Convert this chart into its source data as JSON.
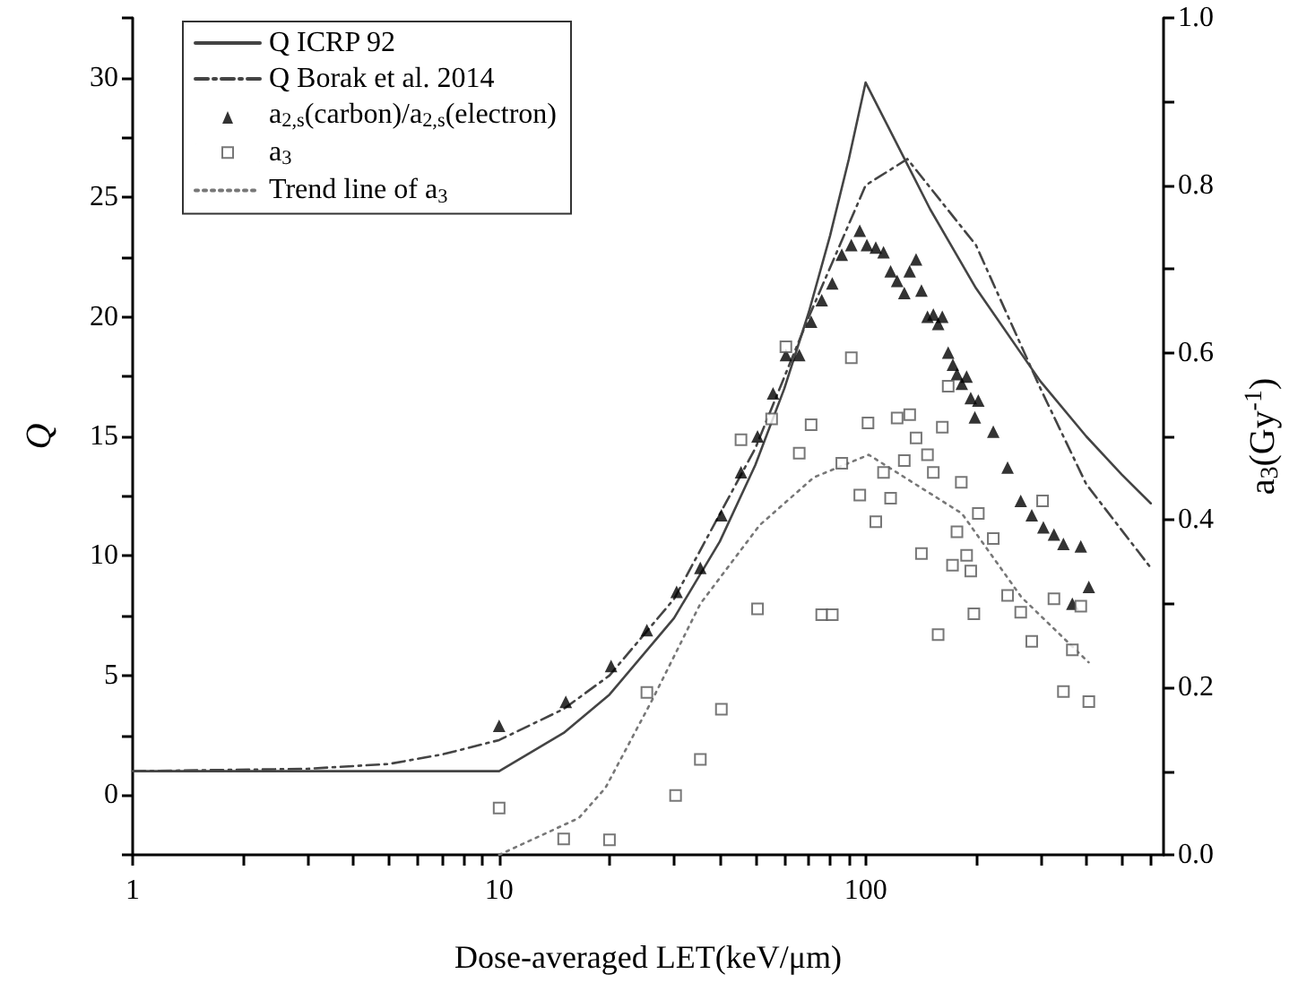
{
  "chart_data": {
    "type": "line",
    "xlabel": "Dose-averaged LET(keV/μm)",
    "ylabel": "Q",
    "y2label": "a$_{3}$(Gy$^{-1}$)",
    "log": "x",
    "grid": false,
    "legend": "top left",
    "xlim": [
      1,
      650
    ],
    "xticks": [
      1,
      {
        "value": 2,
        "label": null
      },
      {
        "value": 3,
        "label": null
      },
      {
        "value": 4,
        "label": null
      },
      {
        "value": 5,
        "label": null
      },
      {
        "value": 6,
        "label": null
      },
      {
        "value": 7,
        "label": null
      },
      {
        "value": 8,
        "label": null
      },
      {
        "value": 9,
        "label": null
      },
      10,
      {
        "value": 20,
        "label": null
      },
      {
        "value": 30,
        "label": null
      },
      {
        "value": 40,
        "label": null
      },
      {
        "value": 50,
        "label": null
      },
      {
        "value": 60,
        "label": null
      },
      {
        "value": 70,
        "label": null
      },
      {
        "value": 80,
        "label": null
      },
      {
        "value": 90,
        "label": null
      },
      100,
      {
        "value": 200,
        "label": null
      },
      {
        "value": 300,
        "label": null
      },
      {
        "value": 400,
        "label": null
      },
      {
        "value": 500,
        "label": null
      },
      {
        "value": 600,
        "label": null
      }
    ],
    "ylim": [
      -2.5,
      32.5
    ],
    "yticks": [
      {
        "value": -2.5,
        "label": null
      },
      0,
      {
        "value": 2.5,
        "label": null
      },
      5,
      {
        "value": 7.5,
        "label": null
      },
      10,
      {
        "value": 12.5,
        "label": null
      },
      15,
      {
        "value": 17.5,
        "label": null
      },
      20,
      {
        "value": 22.5,
        "label": null
      },
      25,
      {
        "value": 27.5,
        "label": null
      },
      30,
      {
        "value": 32.5,
        "label": null
      }
    ],
    "y2lim": [
      0,
      1
    ],
    "y2ticks": [
      {
        "value": 0,
        "label": "0.0"
      },
      {
        "value": 0.1,
        "label": null
      },
      {
        "value": 0.2,
        "label": "0.2"
      },
      {
        "value": 0.3,
        "label": null
      },
      {
        "value": 0.4,
        "label": "0.4"
      },
      {
        "value": 0.5,
        "label": null
      },
      {
        "value": 0.6,
        "label": "0.6"
      },
      {
        "value": 0.7,
        "label": null
      },
      {
        "value": 0.8,
        "label": "0.8"
      },
      {
        "value": 0.9,
        "label": null
      },
      {
        "value": 1,
        "label": "1.0"
      }
    ],
    "series": [
      {
        "name": "Q ICRP 92",
        "type": "line",
        "color": "#444444",
        "line_style": "solid",
        "marker": "none",
        "x": [
          1,
          10,
          15,
          20,
          30,
          40,
          50,
          60,
          70,
          80,
          90,
          100,
          150,
          200,
          300,
          400,
          500,
          600
        ],
        "values": [
          1,
          1,
          2.6,
          4.2,
          7.4,
          10.6,
          13.8,
          17.0,
          20.2,
          23.4,
          26.6,
          29.8,
          24.5,
          21.2,
          17.3,
          15.0,
          13.4,
          12.2
        ]
      },
      {
        "name": "Q Borak et al. 2014",
        "type": "line",
        "color": "#444444",
        "line_style": "dashed",
        "marker": "none",
        "x": [
          1,
          3,
          5,
          7,
          10,
          15,
          20,
          30,
          50,
          70,
          100,
          130,
          200,
          300,
          400,
          600
        ],
        "values": [
          1.0,
          1.1,
          1.3,
          1.7,
          2.3,
          3.6,
          5.0,
          8.2,
          14.5,
          20.0,
          25.5,
          26.6,
          23.0,
          17.0,
          13.0,
          9.5
        ]
      },
      {
        "name": "a$_{2,s}$(carbon)/a$_{2,s}$(electron)",
        "type": "scatter",
        "color": "#000000",
        "marker": "triangle",
        "x": [
          10,
          15.2,
          20.2,
          25.3,
          30.5,
          35.4,
          40.4,
          45.7,
          50.7,
          55.9,
          60.6,
          65.9,
          71,
          75.9,
          81.1,
          86.1,
          91.4,
          96.4,
          100.8,
          106.6,
          111.9,
          117,
          121.9,
          127.5,
          131.9,
          137.3,
          142,
          147.5,
          153,
          157.7,
          161.9,
          168,
          173,
          177.5,
          183,
          188.6,
          193.6,
          198.6,
          203,
          223,
          244,
          265,
          284,
          305.5,
          326.5,
          346.5,
          366.5,
          386.5,
          406.5
        ],
        "values": [
          2.9,
          3.9,
          5.4,
          6.9,
          8.5,
          9.5,
          11.7,
          13.5,
          15.0,
          16.8,
          18.4,
          18.4,
          19.8,
          20.7,
          21.4,
          22.6,
          23.0,
          23.6,
          23.0,
          22.9,
          22.7,
          21.9,
          21.5,
          21.0,
          21.9,
          22.4,
          21.1,
          20.0,
          20.1,
          19.7,
          20.0,
          18.5,
          18.0,
          17.6,
          17.2,
          17.5,
          16.6,
          15.8,
          16.5,
          15.2,
          13.7,
          12.3,
          11.7,
          11.2,
          10.9,
          10.5,
          8.0,
          10.4,
          8.7
        ]
      },
      {
        "name": "a$_{3}$",
        "type": "scatter",
        "axis": "y2",
        "color": "#555555",
        "marker": "square",
        "x": [
          10,
          15,
          20,
          25.3,
          30.3,
          35.4,
          40.4,
          45.7,
          50.7,
          55.4,
          60.6,
          65.9,
          71,
          75.9,
          81.1,
          86.1,
          91.4,
          96.4,
          101.5,
          106.6,
          111.9,
          117,
          121.9,
          127.5,
          131.9,
          137.3,
          142,
          147.5,
          153,
          157.7,
          161.9,
          168,
          172.6,
          177.5,
          182.4,
          188.6,
          193.6,
          197.4,
          203,
          223,
          244,
          265,
          284,
          304,
          326.5,
          346.5,
          366.5,
          386.5,
          406.5
        ],
        "values": [
          0.056,
          0.019,
          0.018,
          0.194,
          0.071,
          0.114,
          0.174,
          0.496,
          0.294,
          0.521,
          0.607,
          0.48,
          0.514,
          0.287,
          0.287,
          0.468,
          0.594,
          0.43,
          0.516,
          0.398,
          0.457,
          0.426,
          0.522,
          0.471,
          0.526,
          0.498,
          0.36,
          0.478,
          0.457,
          0.263,
          0.511,
          0.56,
          0.346,
          0.386,
          0.445,
          0.358,
          0.339,
          0.288,
          0.408,
          0.378,
          0.31,
          0.29,
          0.255,
          0.423,
          0.306,
          0.195,
          0.245,
          0.297,
          0.183
        ]
      },
      {
        "name": "Trend line of a$_{3}$",
        "type": "line",
        "axis": "y2",
        "color": "#777777",
        "line_style": "dotted",
        "marker": "none",
        "x": [
          10,
          16.5,
          19.5,
          26.3,
          35.4,
          51.4,
          72.2,
          102,
          183,
          266,
          406
        ],
        "values": [
          0.0,
          0.044,
          0.08,
          0.187,
          0.3,
          0.394,
          0.451,
          0.478,
          0.408,
          0.308,
          0.23
        ]
      }
    ]
  }
}
